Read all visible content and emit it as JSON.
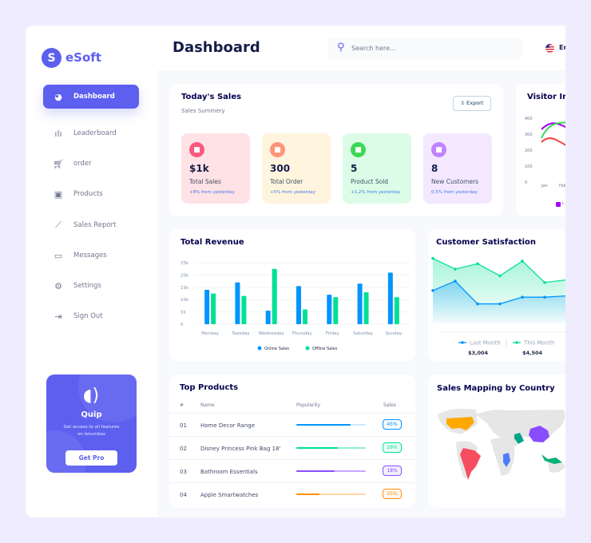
{
  "brand": {
    "name": "eSoft",
    "logo_letter": "S"
  },
  "sidebar": {
    "items": [
      {
        "label": "Dashboard",
        "icon": "pie-chart-icon",
        "active": true
      },
      {
        "label": "Leaderboard",
        "icon": "bar-chart-icon"
      },
      {
        "label": "order",
        "icon": "cart-icon"
      },
      {
        "label": "Products",
        "icon": "shopping-bag-icon"
      },
      {
        "label": "Sales Report",
        "icon": "line-chart-icon"
      },
      {
        "label": "Messages",
        "icon": "message-icon"
      },
      {
        "label": "Settings",
        "icon": "gear-icon"
      },
      {
        "label": "Sign Out",
        "icon": "sign-out-icon"
      }
    ],
    "promo": {
      "title": "Quip",
      "text": "Get access to all features on tetumbas",
      "button": "Get Pro"
    }
  },
  "header": {
    "title": "Dashboard",
    "search_placeholder": "Search here...",
    "language": "En"
  },
  "todays_sales": {
    "title": "Today's Sales",
    "subtitle": "Sales Summery",
    "export_label": "Export",
    "stats": [
      {
        "value": "$1k",
        "label": "Total Sales",
        "change": "+8% from yesterday",
        "bg": "#ffe2e5",
        "icon_color": "#fa5a7d",
        "icon": "chart-icon"
      },
      {
        "value": "300",
        "label": "Total Order",
        "change": "+5% from yesterday",
        "bg": "#fff4de",
        "icon_color": "#ff947a",
        "icon": "document-icon"
      },
      {
        "value": "5",
        "label": "Product Sold",
        "change": "+1,2% from yesterday",
        "bg": "#dcfce7",
        "icon_color": "#3cd856",
        "icon": "tag-icon"
      },
      {
        "value": "8",
        "label": "New Customers",
        "change": "0,5% from yesterday",
        "bg": "#f3e8ff",
        "icon_color": "#bf83ff",
        "icon": "add-user-icon"
      }
    ]
  },
  "visitor_insights": {
    "title": "Visitor Insi",
    "y_ticks": [
      "400",
      "300",
      "200",
      "100",
      "0"
    ],
    "x_ticks": [
      "Jan",
      "Feb"
    ],
    "legend": "L"
  },
  "chart_data": [
    {
      "type": "bar",
      "title": "Total Revenue",
      "categories": [
        "Monday",
        "Tuesday",
        "Wednesday",
        "Thursday",
        "Friday",
        "Saturday",
        "Sunday"
      ],
      "y_ticks": [
        "25k",
        "20k",
        "15k",
        "10k",
        "5k",
        "0"
      ],
      "ylim": [
        0,
        25000
      ],
      "series": [
        {
          "name": "Online Sales",
          "color": "#0095ff",
          "values": [
            14000,
            17000,
            5500,
            15500,
            12000,
            16500,
            21000
          ]
        },
        {
          "name": "Offline Sales",
          "color": "#00e096",
          "values": [
            12500,
            11500,
            22500,
            6000,
            11000,
            13000,
            11000
          ]
        }
      ]
    },
    {
      "type": "area",
      "title": "Customer Satisfaction",
      "series": [
        {
          "name": "Last Month",
          "color": "#0095ff",
          "total": "$3,004",
          "values": [
            12,
            15.5,
            7,
            7,
            9.5,
            9.5,
            10
          ]
        },
        {
          "name": "This Month",
          "color": "#07e098",
          "total": "$4,504",
          "values": [
            24,
            20,
            22,
            17.5,
            23,
            15,
            16
          ]
        }
      ]
    }
  ],
  "top_products": {
    "title": "Top Products",
    "headers": [
      "#",
      "Name",
      "Popularity",
      "Sales"
    ],
    "rows": [
      {
        "num": "01",
        "name": "Home Decor Range",
        "popularity": 0.78,
        "sales": "45%",
        "color": "#0095ff",
        "light": "#cde7ff"
      },
      {
        "num": "02",
        "name": "Disney Princess Pink Bag 18'",
        "popularity": 0.6,
        "sales": "29%",
        "color": "#00e096",
        "light": "#8cf5c8"
      },
      {
        "num": "03",
        "name": "Bathroom Essentials",
        "popularity": 0.55,
        "sales": "18%",
        "color": "#884dff",
        "light": "#c5a8ff"
      },
      {
        "num": "04",
        "name": "Apple Smartwatches",
        "popularity": 0.33,
        "sales": "25%",
        "color": "#ff8f0d",
        "light": "#ffd5a4"
      }
    ]
  },
  "sales_map": {
    "title": "Sales Mapping by Country",
    "countries": [
      {
        "name": "USA",
        "color": "#ffa800"
      },
      {
        "name": "Brazil",
        "color": "#f64e60"
      },
      {
        "name": "Saudi Arabia",
        "color": "#00a389"
      },
      {
        "name": "China",
        "color": "#884dff"
      },
      {
        "name": "Congo",
        "color": "#4f7df9"
      },
      {
        "name": "Indonesia",
        "color": "#00b074"
      }
    ]
  }
}
